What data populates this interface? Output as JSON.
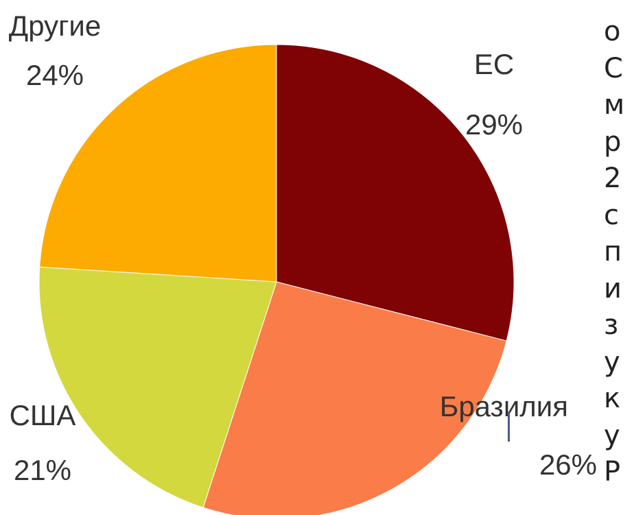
{
  "chart_data": {
    "type": "pie",
    "title": "",
    "slices": [
      {
        "label": "ЕС",
        "value_label": "29%",
        "value": 29,
        "color": "#7f0304"
      },
      {
        "label": "Бразилия",
        "value_label": "26%",
        "value": 26,
        "color": "#fa7c48"
      },
      {
        "label": "США",
        "value_label": "21%",
        "value": 21,
        "color": "#d3d83e"
      },
      {
        "label": "Другие",
        "value_label": "24%",
        "value": 24,
        "color": "#fdab00"
      }
    ]
  },
  "side_text": {
    "fragments": [
      "о",
      "С",
      "м",
      "р",
      "2",
      "с",
      "п",
      "и",
      "з",
      "у",
      "к",
      "у",
      "Р"
    ]
  }
}
